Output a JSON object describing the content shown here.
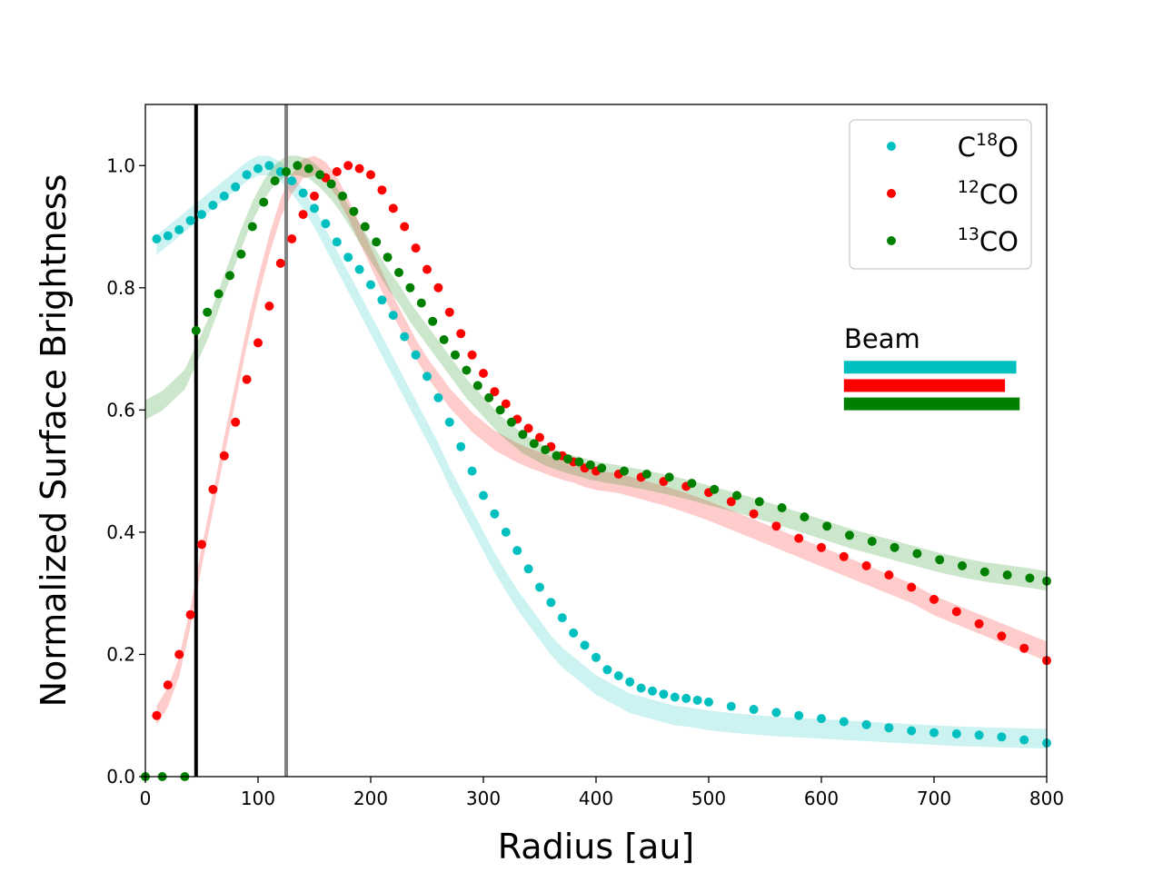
{
  "chart_data": {
    "type": "scatter",
    "title": "",
    "xlabel": "Radius [au]",
    "ylabel": "Normalized Surface Brightness",
    "xlim": [
      0,
      800
    ],
    "ylim": [
      0,
      1.1
    ],
    "xticks": [
      "0",
      "100",
      "200",
      "300",
      "400",
      "500",
      "600",
      "700",
      "800"
    ],
    "yticks": [
      "0.0",
      "0.2",
      "0.4",
      "0.6",
      "0.8",
      "1.0"
    ],
    "grid": false,
    "legend_position": "top-right",
    "vertical_lines": [
      {
        "x": 45,
        "color": "#000000"
      },
      {
        "x": 125,
        "color": "#808080"
      }
    ],
    "series": [
      {
        "name": "C18O",
        "legend_base": "C",
        "legend_sup": "18",
        "legend_tail": "O",
        "color": "#00bfbf",
        "band_color": "#00bfbf",
        "x": [
          10,
          20,
          30,
          40,
          50,
          60,
          70,
          80,
          90,
          100,
          110,
          120,
          130,
          140,
          150,
          160,
          170,
          180,
          190,
          200,
          210,
          220,
          230,
          240,
          250,
          260,
          270,
          280,
          290,
          300,
          310,
          320,
          330,
          340,
          350,
          360,
          370,
          380,
          390,
          400,
          410,
          420,
          430,
          440,
          450,
          460,
          470,
          480,
          490,
          500,
          520,
          540,
          560,
          580,
          600,
          620,
          640,
          660,
          680,
          700,
          720,
          740,
          760,
          780,
          800
        ],
        "y": [
          0.88,
          0.885,
          0.895,
          0.91,
          0.92,
          0.935,
          0.95,
          0.965,
          0.985,
          0.995,
          1.0,
          0.99,
          0.975,
          0.955,
          0.93,
          0.905,
          0.875,
          0.85,
          0.83,
          0.805,
          0.78,
          0.755,
          0.72,
          0.69,
          0.655,
          0.62,
          0.58,
          0.54,
          0.5,
          0.46,
          0.43,
          0.4,
          0.37,
          0.34,
          0.31,
          0.285,
          0.26,
          0.235,
          0.215,
          0.195,
          0.175,
          0.165,
          0.155,
          0.145,
          0.14,
          0.135,
          0.13,
          0.128,
          0.125,
          0.122,
          0.115,
          0.11,
          0.105,
          0.1,
          0.095,
          0.09,
          0.085,
          0.08,
          0.075,
          0.072,
          0.07,
          0.068,
          0.065,
          0.06,
          0.055
        ],
        "band_y": [
          0.87,
          0.885,
          0.9,
          0.915,
          0.93,
          0.945,
          0.96,
          0.975,
          0.99,
          1.0,
          1.0,
          0.99,
          0.97,
          0.945,
          0.915,
          0.88,
          0.845,
          0.81,
          0.775,
          0.74,
          0.705,
          0.67,
          0.635,
          0.6,
          0.565,
          0.53,
          0.49,
          0.455,
          0.42,
          0.385,
          0.35,
          0.32,
          0.29,
          0.265,
          0.24,
          0.215,
          0.195,
          0.18,
          0.165,
          0.15,
          0.14,
          0.13,
          0.12,
          0.115,
          0.11,
          0.105,
          0.1,
          0.098,
          0.095,
          0.092,
          0.088,
          0.085,
          0.082,
          0.08,
          0.078,
          0.076,
          0.074,
          0.072,
          0.07,
          0.068,
          0.066,
          0.065,
          0.064,
          0.063,
          0.062
        ],
        "band_halfwidth": 0.016
      },
      {
        "name": "12CO",
        "legend_base": "",
        "legend_sup": "12",
        "legend_tail": "CO",
        "color": "#ff0000",
        "band_color": "#ff0000",
        "x": [
          10,
          20,
          30,
          40,
          50,
          60,
          70,
          80,
          90,
          100,
          110,
          120,
          130,
          140,
          150,
          160,
          170,
          180,
          190,
          200,
          210,
          220,
          230,
          240,
          250,
          260,
          270,
          280,
          290,
          300,
          310,
          320,
          330,
          340,
          350,
          360,
          370,
          380,
          390,
          400,
          420,
          440,
          460,
          480,
          500,
          520,
          540,
          560,
          580,
          600,
          620,
          640,
          660,
          680,
          700,
          720,
          740,
          760,
          780,
          800
        ],
        "y": [
          0.1,
          0.15,
          0.2,
          0.265,
          0.38,
          0.47,
          0.525,
          0.58,
          0.65,
          0.71,
          0.77,
          0.84,
          0.88,
          0.92,
          0.95,
          0.98,
          0.99,
          1.0,
          0.995,
          0.985,
          0.96,
          0.93,
          0.9,
          0.865,
          0.83,
          0.8,
          0.76,
          0.725,
          0.69,
          0.66,
          0.63,
          0.61,
          0.585,
          0.57,
          0.555,
          0.54,
          0.525,
          0.515,
          0.505,
          0.5,
          0.495,
          0.49,
          0.483,
          0.475,
          0.465,
          0.45,
          0.43,
          0.41,
          0.39,
          0.375,
          0.36,
          0.345,
          0.33,
          0.31,
          0.29,
          0.27,
          0.25,
          0.23,
          0.21,
          0.19
        ],
        "band_y": [
          0.1,
          0.13,
          0.18,
          0.26,
          0.36,
          0.45,
          0.54,
          0.63,
          0.72,
          0.8,
          0.87,
          0.93,
          0.97,
          0.995,
          1.0,
          0.99,
          0.965,
          0.93,
          0.89,
          0.85,
          0.81,
          0.77,
          0.735,
          0.7,
          0.67,
          0.645,
          0.62,
          0.6,
          0.58,
          0.565,
          0.55,
          0.54,
          0.53,
          0.522,
          0.515,
          0.508,
          0.502,
          0.497,
          0.49,
          0.485,
          0.48,
          0.47,
          0.46,
          0.448,
          0.435,
          0.42,
          0.405,
          0.39,
          0.375,
          0.36,
          0.345,
          0.33,
          0.315,
          0.3,
          0.28,
          0.265,
          0.25,
          0.235,
          0.22,
          0.205
        ],
        "band_halfwidth": 0.016
      },
      {
        "name": "13CO",
        "legend_base": "",
        "legend_sup": "13",
        "legend_tail": "CO",
        "color": "#008000",
        "band_color": "#008000",
        "x": [
          0,
          15,
          35,
          45,
          55,
          65,
          75,
          85,
          95,
          105,
          115,
          125,
          135,
          145,
          155,
          165,
          175,
          185,
          195,
          205,
          215,
          225,
          235,
          245,
          255,
          265,
          275,
          285,
          295,
          305,
          315,
          325,
          335,
          345,
          355,
          365,
          375,
          385,
          395,
          405,
          425,
          445,
          465,
          485,
          505,
          525,
          545,
          565,
          585,
          605,
          625,
          645,
          665,
          685,
          705,
          725,
          745,
          765,
          785,
          800
        ],
        "y": [
          0.0,
          0.0,
          0.0,
          0.73,
          0.76,
          0.79,
          0.82,
          0.855,
          0.9,
          0.94,
          0.975,
          0.99,
          1.0,
          0.995,
          0.985,
          0.97,
          0.95,
          0.925,
          0.9,
          0.875,
          0.85,
          0.825,
          0.8,
          0.775,
          0.745,
          0.715,
          0.69,
          0.665,
          0.64,
          0.62,
          0.6,
          0.58,
          0.56,
          0.545,
          0.535,
          0.525,
          0.52,
          0.515,
          0.51,
          0.505,
          0.5,
          0.495,
          0.49,
          0.48,
          0.47,
          0.46,
          0.45,
          0.44,
          0.425,
          0.41,
          0.395,
          0.385,
          0.375,
          0.365,
          0.355,
          0.345,
          0.335,
          0.33,
          0.325,
          0.32
        ],
        "band_y": [
          0.6,
          0.615,
          0.65,
          0.69,
          0.73,
          0.78,
          0.83,
          0.88,
          0.925,
          0.96,
          0.985,
          1.0,
          1.0,
          0.995,
          0.98,
          0.96,
          0.935,
          0.905,
          0.875,
          0.845,
          0.815,
          0.79,
          0.76,
          0.735,
          0.71,
          0.685,
          0.66,
          0.635,
          0.615,
          0.595,
          0.575,
          0.56,
          0.545,
          0.535,
          0.525,
          0.518,
          0.512,
          0.507,
          0.502,
          0.498,
          0.492,
          0.485,
          0.477,
          0.468,
          0.458,
          0.448,
          0.437,
          0.426,
          0.414,
          0.402,
          0.39,
          0.38,
          0.37,
          0.36,
          0.35,
          0.342,
          0.335,
          0.33,
          0.325,
          0.32
        ],
        "band_halfwidth": 0.016
      }
    ],
    "beam": {
      "label": "Beam",
      "bars": [
        {
          "series": "C18O",
          "color": "#00bfbf",
          "x0": 620,
          "x1": 773,
          "y": 0.67
        },
        {
          "series": "12CO",
          "color": "#ff0000",
          "x0": 620,
          "x1": 763,
          "y": 0.64
        },
        {
          "series": "13CO",
          "color": "#008000",
          "x0": 620,
          "x1": 776,
          "y": 0.61
        }
      ]
    }
  }
}
